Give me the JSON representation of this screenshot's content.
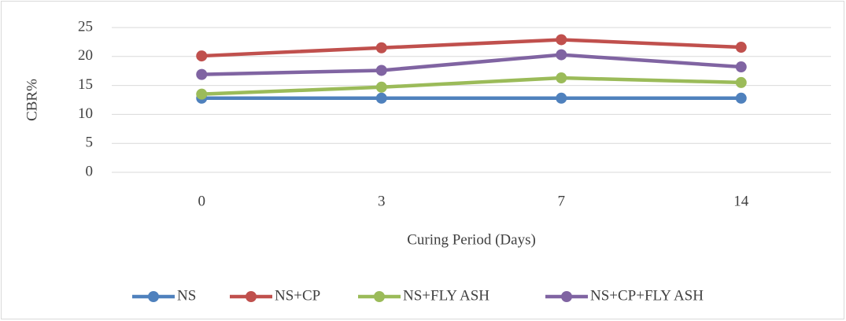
{
  "chart_data": {
    "type": "line",
    "y_label": "CBR%",
    "x_label": "Curing Period (Days)",
    "categories": [
      "0",
      "3",
      "7",
      "14"
    ],
    "series": [
      {
        "name": "NS",
        "color": "#4f81bd",
        "values": [
          12.8,
          12.8,
          12.8,
          12.8
        ]
      },
      {
        "name": "NS+CP",
        "color": "#c0504d",
        "values": [
          20.1,
          21.5,
          22.9,
          21.6
        ]
      },
      {
        "name": "NS+FLY ASH",
        "color": "#9bbb59",
        "values": [
          13.5,
          14.7,
          16.3,
          15.5
        ]
      },
      {
        "name": "NS+CP+FLY ASH",
        "color": "#8064a2",
        "values": [
          16.9,
          17.6,
          20.3,
          18.2
        ]
      }
    ],
    "ylim": [
      0,
      25
    ],
    "yticks": [
      0,
      5,
      10,
      15,
      20,
      25
    ],
    "grid": true,
    "legend": "bottom"
  }
}
